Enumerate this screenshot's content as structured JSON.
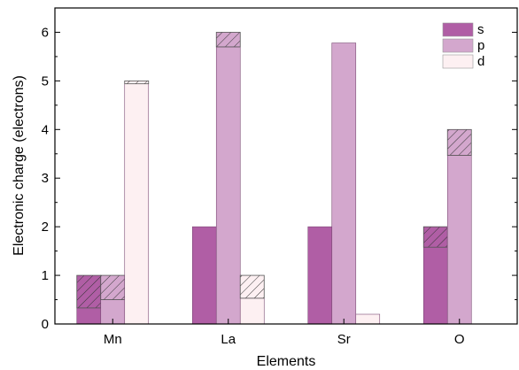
{
  "chart_data": {
    "type": "bar",
    "stacked_with_hatched_part": true,
    "xlabel": "Elements",
    "ylabel": "Electronic charge (electrons)",
    "ylim": [
      0,
      6.5
    ],
    "yticks": [
      "0",
      "1",
      "2",
      "3",
      "4",
      "5",
      "6"
    ],
    "categories": [
      "Mn",
      "La",
      "Sr",
      "O"
    ],
    "series": [
      {
        "name": "s",
        "color": "#b05ea5",
        "solid": [
          0.33,
          2.0,
          2.0,
          1.58
        ],
        "hatched": [
          0.67,
          0.0,
          0.0,
          0.42
        ]
      },
      {
        "name": "p",
        "color": "#d3a7cd",
        "solid": [
          0.5,
          5.7,
          5.78,
          3.47
        ],
        "hatched": [
          0.5,
          0.3,
          0.0,
          0.53
        ]
      },
      {
        "name": "d",
        "color": "#fdf0f2",
        "solid": [
          4.94,
          0.53,
          0.2,
          0.0
        ],
        "hatched": [
          0.06,
          0.47,
          0.0,
          0.0
        ]
      }
    ],
    "legend_position": "top-right",
    "grid": false
  }
}
